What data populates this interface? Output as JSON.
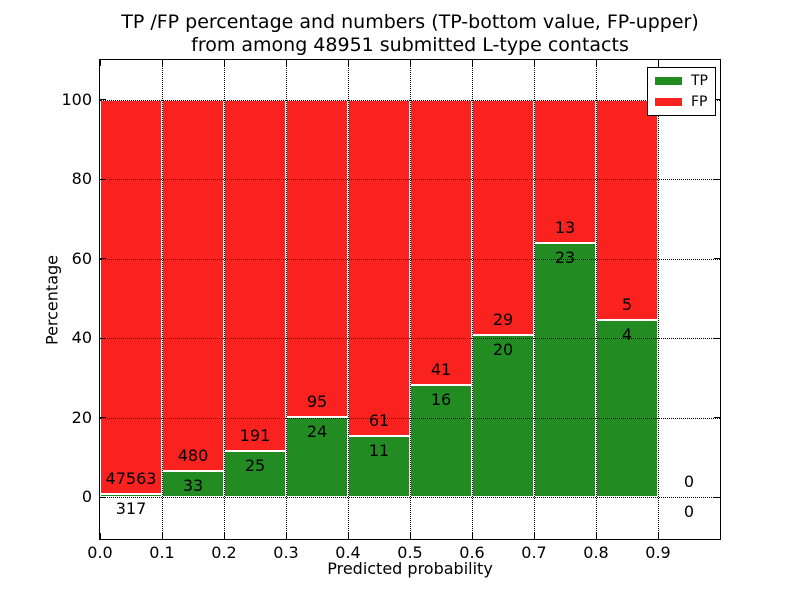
{
  "chart_data": {
    "type": "bar",
    "stacked": true,
    "title_line1": "TP /FP percentage and numbers (TP-bottom value, FP-upper)",
    "title_line2": "from among 48951 submitted L-type contacts",
    "total_submitted": 48951,
    "xlabel": "Predicted probability",
    "ylabel": "Percentage",
    "xlim": [
      0.0,
      1.0
    ],
    "ylim": [
      -10.6,
      110.0
    ],
    "xtick_labels": [
      "0.0",
      "0.1",
      "0.2",
      "0.3",
      "0.4",
      "0.5",
      "0.6",
      "0.7",
      "0.8",
      "0.9"
    ],
    "ytick_values": [
      0,
      20,
      40,
      60,
      80,
      100
    ],
    "ytick_labels": [
      "0",
      "20",
      "40",
      "60",
      "80",
      "100"
    ],
    "grid": "dotted-both-axes",
    "colors": {
      "tp": "#228b22",
      "fp": "#f9221e",
      "axis": "#000000",
      "background": "#ffffff"
    },
    "legend": {
      "position": "upper-right",
      "items": [
        {
          "label": "TP",
          "color": "#228b22"
        },
        {
          "label": "FP",
          "color": "#f9221e"
        }
      ]
    },
    "bins": [
      {
        "range": [
          0.0,
          0.1
        ],
        "tp": 317,
        "fp": 47563,
        "tp_pct": 0.66
      },
      {
        "range": [
          0.1,
          0.2
        ],
        "tp": 33,
        "fp": 480,
        "tp_pct": 6.43
      },
      {
        "range": [
          0.2,
          0.3
        ],
        "tp": 25,
        "fp": 191,
        "tp_pct": 11.57
      },
      {
        "range": [
          0.3,
          0.4
        ],
        "tp": 24,
        "fp": 95,
        "tp_pct": 20.17
      },
      {
        "range": [
          0.4,
          0.5
        ],
        "tp": 11,
        "fp": 61,
        "tp_pct": 15.28
      },
      {
        "range": [
          0.5,
          0.6
        ],
        "tp": 16,
        "fp": 41,
        "tp_pct": 28.07
      },
      {
        "range": [
          0.6,
          0.7
        ],
        "tp": 20,
        "fp": 29,
        "tp_pct": 40.82
      },
      {
        "range": [
          0.7,
          0.8
        ],
        "tp": 23,
        "fp": 13,
        "tp_pct": 63.89
      },
      {
        "range": [
          0.8,
          0.9
        ],
        "tp": 4,
        "fp": 5,
        "tp_pct": 44.44
      },
      {
        "range": [
          0.9,
          1.0
        ],
        "tp": 0,
        "fp": 0,
        "tp_pct": 0
      }
    ]
  }
}
